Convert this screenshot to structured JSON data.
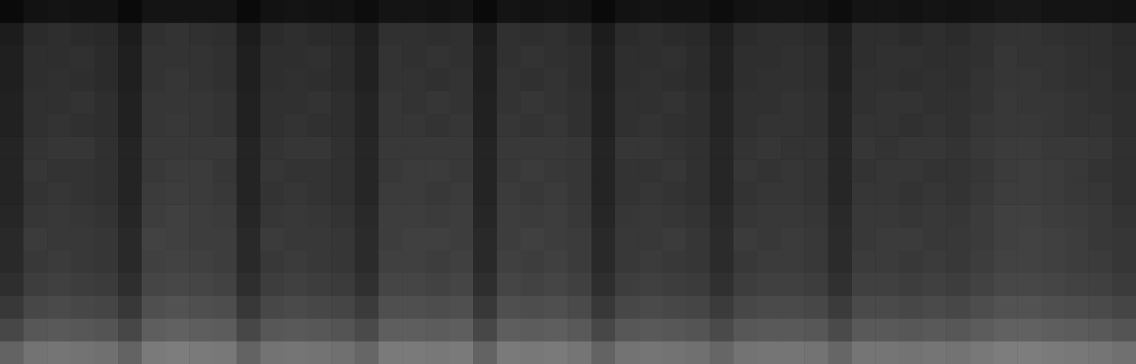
{
  "chart_data": {
    "type": "heatmap",
    "tick_labels": false,
    "grid": false,
    "zlim": [
      0,
      100
    ],
    "cells": [
      [
        39,
        45,
        46,
        45,
        44,
        39,
        48,
        49,
        48,
        47,
        39,
        45,
        46,
        45,
        44,
        40,
        48,
        48,
        47,
        48,
        39,
        48,
        47,
        48,
        46,
        39,
        45,
        46,
        45,
        44,
        40,
        45,
        46,
        46,
        45,
        40,
        46,
        46,
        45,
        46,
        45,
        47,
        49,
        49,
        48,
        47,
        46,
        44
      ],
      [
        28,
        34,
        35,
        34,
        33,
        28,
        37,
        38,
        37,
        36,
        28,
        34,
        35,
        34,
        33,
        29,
        37,
        37,
        36,
        37,
        28,
        37,
        36,
        37,
        35,
        28,
        34,
        35,
        34,
        33,
        29,
        34,
        35,
        35,
        34,
        29,
        35,
        35,
        34,
        35,
        34,
        36,
        38,
        38,
        37,
        36,
        35,
        33
      ],
      [
        22,
        28,
        29,
        28,
        27,
        22,
        31,
        32,
        31,
        30,
        22,
        28,
        29,
        28,
        27,
        23,
        31,
        31,
        30,
        31,
        22,
        31,
        30,
        31,
        29,
        22,
        28,
        29,
        28,
        27,
        23,
        28,
        29,
        29,
        28,
        23,
        29,
        29,
        28,
        29,
        28,
        30,
        32,
        32,
        31,
        30,
        29,
        27
      ],
      [
        18,
        24,
        25,
        24,
        23,
        18,
        27,
        28,
        27,
        26,
        18,
        24,
        25,
        24,
        23,
        19,
        27,
        27,
        26,
        27,
        18,
        27,
        26,
        27,
        25,
        18,
        24,
        25,
        24,
        23,
        19,
        24,
        25,
        25,
        24,
        19,
        25,
        25,
        24,
        25,
        24,
        26,
        28,
        28,
        27,
        26,
        25,
        23
      ],
      [
        16,
        22,
        23,
        22,
        21,
        16,
        25,
        26,
        25,
        24,
        16,
        22,
        23,
        22,
        21,
        17,
        25,
        25,
        24,
        25,
        16,
        25,
        24,
        25,
        23,
        16,
        22,
        23,
        22,
        21,
        17,
        22,
        23,
        23,
        22,
        17,
        23,
        23,
        22,
        23,
        22,
        24,
        26,
        26,
        25,
        24,
        23,
        21
      ],
      [
        16,
        23,
        22,
        22,
        21,
        16,
        26,
        25,
        24,
        24,
        16,
        23,
        22,
        22,
        21,
        17,
        24,
        25,
        25,
        24,
        16,
        24,
        25,
        24,
        23,
        16,
        22,
        22,
        23,
        21,
        17,
        23,
        22,
        23,
        22,
        17,
        22,
        23,
        23,
        22,
        22,
        23,
        25,
        26,
        25,
        24,
        22,
        21
      ],
      [
        15,
        21,
        22,
        21,
        20,
        15,
        24,
        25,
        24,
        23,
        15,
        21,
        22,
        21,
        20,
        16,
        24,
        24,
        23,
        24,
        15,
        24,
        23,
        24,
        22,
        15,
        21,
        22,
        21,
        20,
        16,
        21,
        22,
        22,
        21,
        16,
        22,
        22,
        21,
        22,
        21,
        23,
        25,
        25,
        24,
        23,
        22,
        20
      ],
      [
        14,
        20,
        21,
        20,
        19,
        14,
        23,
        24,
        23,
        22,
        14,
        20,
        21,
        20,
        19,
        15,
        23,
        23,
        22,
        23,
        14,
        23,
        22,
        23,
        21,
        14,
        20,
        21,
        20,
        19,
        15,
        20,
        21,
        21,
        20,
        15,
        21,
        21,
        20,
        21,
        20,
        22,
        24,
        24,
        23,
        22,
        21,
        19
      ],
      [
        14,
        21,
        20,
        20,
        19,
        14,
        22,
        23,
        23,
        21,
        14,
        21,
        20,
        20,
        19,
        15,
        22,
        23,
        23,
        22,
        14,
        22,
        23,
        22,
        21,
        14,
        20,
        20,
        21,
        19,
        15,
        21,
        20,
        21,
        20,
        15,
        20,
        21,
        21,
        20,
        20,
        21,
        23,
        24,
        23,
        22,
        20,
        19
      ],
      [
        14,
        20,
        21,
        21,
        19,
        14,
        22,
        22,
        22,
        22,
        14,
        20,
        21,
        21,
        19,
        15,
        22,
        22,
        22,
        22,
        14,
        22,
        22,
        22,
        21,
        14,
        21,
        21,
        20,
        19,
        15,
        20,
        21,
        20,
        20,
        15,
        21,
        20,
        21,
        21,
        20,
        22,
        23,
        23,
        22,
        22,
        21,
        19
      ],
      [
        13,
        19,
        20,
        19,
        18,
        13,
        21,
        22,
        21,
        20,
        13,
        19,
        20,
        19,
        18,
        14,
        21,
        21,
        20,
        21,
        13,
        21,
        20,
        21,
        19,
        13,
        19,
        20,
        19,
        18,
        14,
        19,
        20,
        20,
        19,
        14,
        20,
        20,
        19,
        20,
        19,
        21,
        22,
        22,
        21,
        20,
        20,
        18
      ],
      [
        13,
        19,
        19,
        20,
        18,
        13,
        21,
        21,
        21,
        20,
        13,
        19,
        19,
        20,
        18,
        14,
        21,
        20,
        21,
        20,
        13,
        20,
        21,
        20,
        19,
        13,
        19,
        19,
        20,
        18,
        14,
        19,
        19,
        20,
        19,
        14,
        19,
        20,
        20,
        19,
        19,
        20,
        22,
        21,
        21,
        20,
        19,
        18
      ],
      [
        12,
        18,
        19,
        18,
        17,
        12,
        20,
        21,
        20,
        19,
        12,
        18,
        19,
        18,
        17,
        13,
        20,
        20,
        19,
        20,
        12,
        20,
        19,
        20,
        18,
        12,
        18,
        19,
        18,
        17,
        13,
        18,
        19,
        19,
        18,
        13,
        19,
        19,
        18,
        19,
        18,
        20,
        21,
        21,
        20,
        19,
        19,
        17
      ],
      [
        12,
        18,
        18,
        19,
        17,
        12,
        20,
        20,
        20,
        19,
        12,
        18,
        18,
        19,
        17,
        13,
        20,
        19,
        20,
        19,
        12,
        19,
        20,
        19,
        18,
        12,
        18,
        18,
        19,
        17,
        13,
        18,
        18,
        19,
        18,
        13,
        18,
        19,
        19,
        18,
        18,
        19,
        21,
        20,
        20,
        19,
        18,
        17
      ],
      [
        11,
        17,
        18,
        17,
        16,
        11,
        19,
        20,
        19,
        18,
        11,
        17,
        18,
        17,
        16,
        12,
        19,
        19,
        18,
        19,
        11,
        19,
        18,
        19,
        17,
        11,
        17,
        18,
        17,
        16,
        12,
        17,
        18,
        18,
        17,
        12,
        18,
        18,
        17,
        18,
        17,
        19,
        20,
        20,
        19,
        18,
        18,
        16
      ],
      [
        4,
        7,
        8,
        7,
        7,
        4,
        8,
        8,
        8,
        8,
        4,
        7,
        8,
        7,
        7,
        5,
        8,
        8,
        7,
        8,
        4,
        8,
        7,
        8,
        7,
        4,
        7,
        8,
        7,
        7,
        5,
        7,
        8,
        8,
        7,
        5,
        8,
        8,
        7,
        8,
        7,
        8,
        9,
        9,
        8,
        8,
        8,
        7
      ]
    ]
  }
}
